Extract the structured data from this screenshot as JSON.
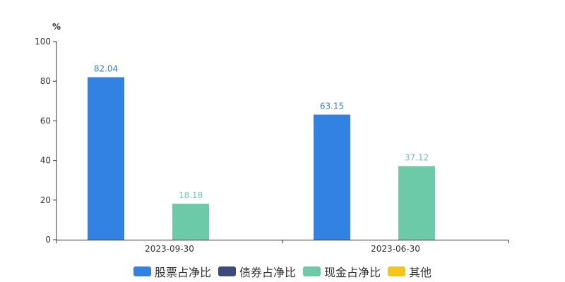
{
  "chart_data": {
    "type": "bar",
    "y_unit": "%",
    "ylim": [
      0,
      100
    ],
    "y_ticks": [
      0,
      20,
      40,
      60,
      80,
      100
    ],
    "categories": [
      "2023-09-30",
      "2023-06-30"
    ],
    "series": [
      {
        "name": "股票占净比",
        "color": "#3282e4",
        "values": [
          82.04,
          63.15
        ]
      },
      {
        "name": "债券占净比",
        "color": "#3c4b7c",
        "values": [
          null,
          null
        ]
      },
      {
        "name": "现金占净比",
        "color": "#6ccaa9",
        "values": [
          18.18,
          37.12
        ]
      },
      {
        "name": "其他",
        "color": "#f7c41c",
        "values": [
          null,
          null
        ]
      }
    ],
    "legend_position": "bottom-center",
    "grid": false
  }
}
